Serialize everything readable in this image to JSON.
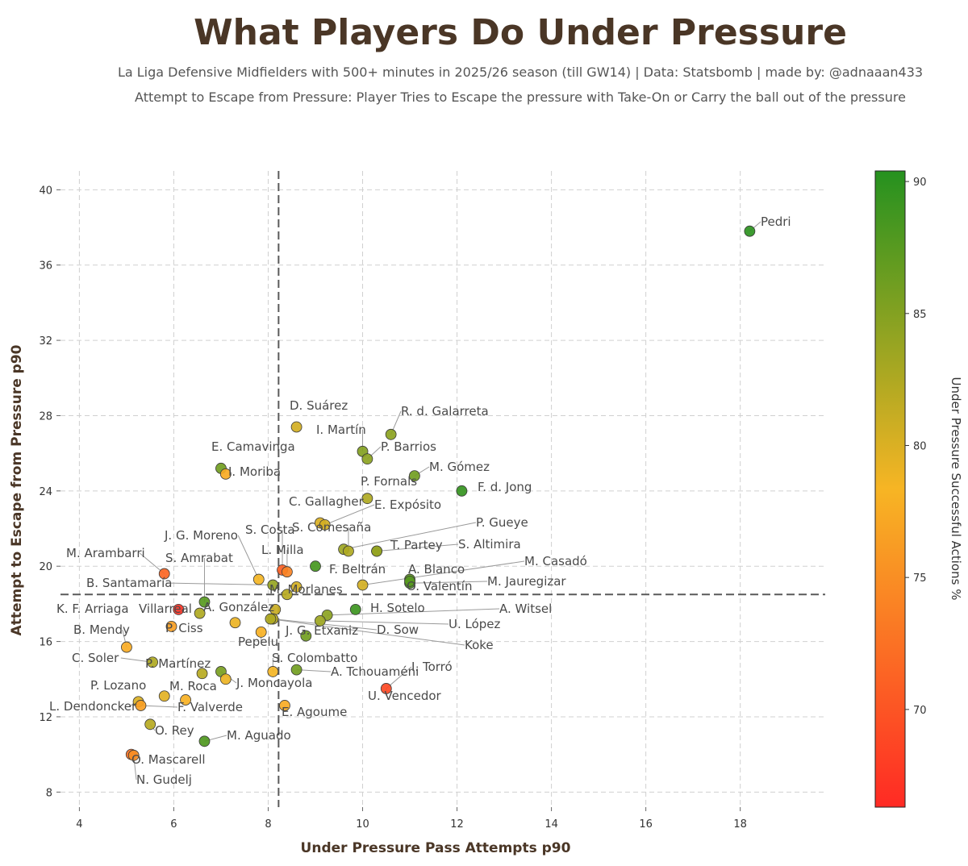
{
  "title": "What Players Do Under Pressure",
  "subtitle_1": "La Liga Defensive Midfielders with 500+ minutes in 2025/26 season (till GW14)  |  Data: Statsbomb  |  made by: @adnaaan433",
  "subtitle_2": "Attempt to Escape from Pressure: Player Tries to Escape the pressure with Take-On or Carry the ball out of the pressure",
  "colors": {
    "grid": "#d0d0d0",
    "refline": "#5a5a5a",
    "leader": "#9a9a9a",
    "cb_low": "#ff2a24",
    "cb_mid": "#f7b524",
    "cb_high": "#25911f"
  },
  "chart_data": {
    "type": "scatter",
    "xlabel": "Under Pressure Pass Attempts p90",
    "ylabel": "Attempt to Escape from Pressure p90",
    "xlim": [
      3.6,
      19.8
    ],
    "ylim": [
      7.2,
      41.0
    ],
    "xticks": [
      4,
      6,
      8,
      10,
      12,
      14,
      16,
      18
    ],
    "yticks": [
      8,
      12,
      16,
      20,
      24,
      28,
      32,
      36,
      40
    ],
    "x_ref": 8.22,
    "y_ref": 18.5,
    "grid": true,
    "colorbar": {
      "label": "Under Pressure Successful Actions %",
      "min": 66.3,
      "max": 90.4,
      "ticks": [
        70,
        75,
        80,
        85,
        90
      ]
    },
    "points": [
      {
        "name": "Pedri",
        "x": 18.2,
        "y": 37.8,
        "c": 90.0
      },
      {
        "name": "D. Suárez",
        "x": 8.6,
        "y": 27.4,
        "c": 80.5
      },
      {
        "name": "R. d. Galarreta",
        "x": 10.6,
        "y": 27.0,
        "c": 84.5
      },
      {
        "name": "I. Martín",
        "x": 10.0,
        "y": 26.1,
        "c": 85.0
      },
      {
        "name": "P. Barrios",
        "x": 10.1,
        "y": 25.7,
        "c": 84.5
      },
      {
        "name": "E. Camavinga",
        "x": 7.0,
        "y": 25.2,
        "c": 86.0
      },
      {
        "name": "I. Moriba",
        "x": 7.1,
        "y": 24.9,
        "c": 77.5
      },
      {
        "name": "M. Gómez",
        "x": 11.1,
        "y": 24.8,
        "c": 86.0
      },
      {
        "name": "F. d. Jong",
        "x": 12.1,
        "y": 24.0,
        "c": 89.5
      },
      {
        "name": "P. Fornals",
        "x": 10.1,
        "y": 23.6,
        "c": 82.5
      },
      {
        "name": "C. Gallagher",
        "x": 9.1,
        "y": 22.3,
        "c": 80.0
      },
      {
        "name": "E. Expósito",
        "x": 9.2,
        "y": 22.2,
        "c": 80.5
      },
      {
        "name": "P. Gueye",
        "x": 9.6,
        "y": 20.9,
        "c": 83.5
      },
      {
        "name": "S. Comesaña",
        "x": 9.7,
        "y": 20.8,
        "c": 82.5
      },
      {
        "name": "T. Partey",
        "x": 10.3,
        "y": 20.8,
        "c": 84.5
      },
      {
        "name": "S. Altimira",
        "x": 10.3,
        "y": 20.8,
        "c": 84.0
      },
      {
        "name": "S. Costa",
        "x": 8.3,
        "y": 19.8,
        "c": 71.0
      },
      {
        "name": "L. Milla",
        "x": 8.4,
        "y": 19.7,
        "c": 74.0
      },
      {
        "name": "J. G. Moreno",
        "x": 7.8,
        "y": 19.3,
        "c": 78.5
      },
      {
        "name": "F. Beltrán",
        "x": 9.0,
        "y": 20.0,
        "c": 88.5
      },
      {
        "name": "A. Blanco",
        "x": 11.0,
        "y": 19.3,
        "c": 87.0
      },
      {
        "name": "M. Casadó",
        "x": 10.0,
        "y": 19.0,
        "c": 80.5
      },
      {
        "name": "M. Jauregizar",
        "x": 11.0,
        "y": 19.1,
        "c": 88.0
      },
      {
        "name": "O. Valentín",
        "x": 11.0,
        "y": 19.2,
        "c": 87.5
      },
      {
        "name": "M. Arambarri",
        "x": 5.8,
        "y": 19.6,
        "c": 71.5
      },
      {
        "name": "S. Amrabat",
        "x": 6.65,
        "y": 18.1,
        "c": 87.5
      },
      {
        "name": "M. Morlanes",
        "x": 8.6,
        "y": 18.9,
        "c": 80.5
      },
      {
        "name": "M. Morlanes 2",
        "x": 8.4,
        "y": 18.5,
        "c": 82.0
      },
      {
        "name": "B. Santamaría",
        "x": 8.1,
        "y": 19.0,
        "c": 84.0
      },
      {
        "name": "K. F. Arriaga",
        "x": 6.1,
        "y": 17.7,
        "c": 67.0
      },
      {
        "name": "Villarreal",
        "x": 6.55,
        "y": 17.5,
        "c": 82.5
      },
      {
        "name": "A. González",
        "x": 8.15,
        "y": 17.7,
        "c": 81.0
      },
      {
        "name": "H. Sotelo",
        "x": 9.85,
        "y": 17.7,
        "c": 89.0
      },
      {
        "name": "A. Witsel",
        "x": 9.25,
        "y": 17.4,
        "c": 84.5
      },
      {
        "name": "P. Ciss",
        "x": 5.95,
        "y": 16.8,
        "c": 76.5
      },
      {
        "name": "B. Mendy",
        "x": 7.3,
        "y": 17.0,
        "c": 79.0
      },
      {
        "name": "D. Sow",
        "x": 8.1,
        "y": 17.2,
        "c": 82.0
      },
      {
        "name": "U. López",
        "x": 9.1,
        "y": 17.1,
        "c": 83.5
      },
      {
        "name": "Pepelu",
        "x": 7.85,
        "y": 16.5,
        "c": 78.0
      },
      {
        "name": "J. G. Etxaniz",
        "x": 8.8,
        "y": 16.3,
        "c": 86.0
      },
      {
        "name": "Koke",
        "x": 8.05,
        "y": 17.2,
        "c": 82.5
      },
      {
        "name": "B. Mendy 2",
        "x": 5.0,
        "y": 15.7,
        "c": 77.5
      },
      {
        "name": "C. Soler",
        "x": 5.55,
        "y": 14.9,
        "c": 82.5
      },
      {
        "name": "S. Colombatto",
        "x": 8.1,
        "y": 14.4,
        "c": 78.5
      },
      {
        "name": "A. Tchouaméni",
        "x": 8.6,
        "y": 14.5,
        "c": 86.0
      },
      {
        "name": "I. Torró",
        "x": 10.5,
        "y": 13.5,
        "c": 69.0
      },
      {
        "name": "P. Martínez",
        "x": 6.6,
        "y": 14.3,
        "c": 82.0
      },
      {
        "name": "J. Moncayola",
        "x": 7.0,
        "y": 14.4,
        "c": 85.5
      },
      {
        "name": "M. Roca",
        "x": 7.1,
        "y": 14.0,
        "c": 79.0
      },
      {
        "name": "P. Lozano",
        "x": 5.8,
        "y": 13.1,
        "c": 79.5
      },
      {
        "name": "F. Valverde",
        "x": 6.25,
        "y": 12.9,
        "c": 78.0
      },
      {
        "name": "L. Dendoncker",
        "x": 5.25,
        "y": 12.8,
        "c": 80.0
      },
      {
        "name": "L. Dendoncker 2",
        "x": 5.3,
        "y": 12.6,
        "c": 76.5
      },
      {
        "name": "E. Agoume",
        "x": 8.35,
        "y": 12.6,
        "c": 77.5
      },
      {
        "name": "O. Rey",
        "x": 5.5,
        "y": 11.6,
        "c": 82.0
      },
      {
        "name": "M. Aguado",
        "x": 6.65,
        "y": 10.7,
        "c": 88.0
      },
      {
        "name": "O. Mascarell",
        "x": 5.1,
        "y": 10.0,
        "c": 72.5
      },
      {
        "name": "N. Gudelj",
        "x": 5.15,
        "y": 9.95,
        "c": 75.0
      }
    ],
    "labels": [
      {
        "text": "Pedri"
      },
      {
        "text": "D. Suárez"
      },
      {
        "text": "R. d. Galarreta"
      },
      {
        "text": "I. Martín"
      },
      {
        "text": "P. Barrios"
      },
      {
        "text": "E. Camavinga"
      },
      {
        "text": "I. Moriba"
      },
      {
        "text": "M. Gómez"
      },
      {
        "text": "F. d. Jong"
      },
      {
        "text": "P. Fornals"
      },
      {
        "text": "C. Gallagher"
      },
      {
        "text": "E. Expósito"
      },
      {
        "text": "P. Gueye"
      },
      {
        "text": "S. Comesaña"
      },
      {
        "text": "T. Partey"
      },
      {
        "text": "S. Altimira"
      },
      {
        "text": "J. G. Moreno"
      },
      {
        "text": "S. Costa"
      },
      {
        "text": "L. Milla"
      },
      {
        "text": "M. Arambarri"
      },
      {
        "text": "S. Amrabat"
      },
      {
        "text": "F. Beltrán"
      },
      {
        "text": "A. Blanco"
      },
      {
        "text": "M. Casadó"
      },
      {
        "text": "B. Santamaría"
      },
      {
        "text": "M. Morlanes"
      },
      {
        "text": "O. Valentín"
      },
      {
        "text": "M. Jauregizar"
      },
      {
        "text": "K. F. Arriaga"
      },
      {
        "text": "Villarreal"
      },
      {
        "text": "A. González"
      },
      {
        "text": "H. Sotelo"
      },
      {
        "text": "A. Witsel"
      },
      {
        "text": "B. Mendy"
      },
      {
        "text": "P. Ciss"
      },
      {
        "text": "D. Sow"
      },
      {
        "text": "U. López"
      },
      {
        "text": "Pepelu"
      },
      {
        "text": "J. G. Etxaniz"
      },
      {
        "text": "Koke"
      },
      {
        "text": "C. Soler"
      },
      {
        "text": "S. Colombatto"
      },
      {
        "text": "P. Martínez"
      },
      {
        "text": "I. Torró"
      },
      {
        "text": "A. Tchouaméni"
      },
      {
        "text": "J. Moncayola"
      },
      {
        "text": "P. Lozano"
      },
      {
        "text": "M. Roca"
      },
      {
        "text": "U. Vencedor"
      },
      {
        "text": "L. Dendoncker"
      },
      {
        "text": "F. Valverde"
      },
      {
        "text": "E. Agoume"
      },
      {
        "text": "O. Rey"
      },
      {
        "text": "M. Aguado"
      },
      {
        "text": "O. Mascarell"
      },
      {
        "text": "N. Gudelj"
      }
    ]
  }
}
